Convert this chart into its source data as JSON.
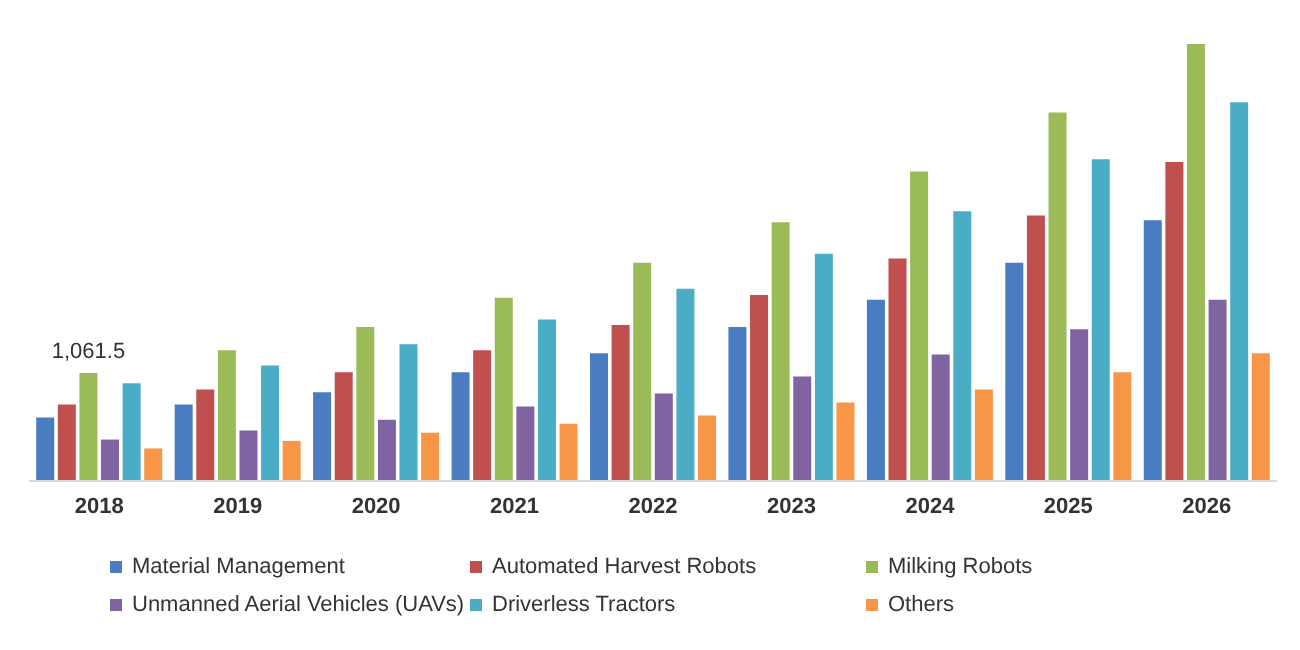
{
  "chart_data": {
    "type": "bar",
    "categories": [
      "2018",
      "2019",
      "2020",
      "2021",
      "2022",
      "2023",
      "2024",
      "2025",
      "2026"
    ],
    "series": [
      {
        "name": "Material Management",
        "color": "#4a7cc1",
        "values": [
          619,
          748,
          870,
          1068,
          1258,
          1517,
          1788,
          2156,
          2577
        ]
      },
      {
        "name": "Automated Harvest Robots",
        "color": "#c0504d",
        "values": [
          748,
          898,
          1068,
          1286,
          1537,
          1836,
          2196,
          2625,
          3155
        ]
      },
      {
        "name": "Milking Robots",
        "color": "#9bbb59",
        "values": [
          1061.5,
          1286,
          1517,
          1809,
          2156,
          2557,
          3060,
          3645,
          4325
        ],
        "value_labels": [
          "1,061.5",
          null,
          null,
          null,
          null,
          null,
          null,
          null,
          null
        ]
      },
      {
        "name": "Unmanned Aerial Vehicles (UAVs)",
        "color": "#8064a2",
        "values": [
          401,
          490,
          598,
          728,
          857,
          1027,
          1244,
          1496,
          1788
        ]
      },
      {
        "name": "Driverless Tractors",
        "color": "#4bacc6",
        "values": [
          959,
          1136,
          1347,
          1591,
          1897,
          2244,
          2666,
          3182,
          3747
        ]
      },
      {
        "name": "Others",
        "color": "#f79646",
        "values": [
          313,
          388,
          469,
          558,
          639,
          768,
          898,
          1068,
          1258
        ]
      }
    ],
    "legend": "bottom",
    "grid": false
  }
}
